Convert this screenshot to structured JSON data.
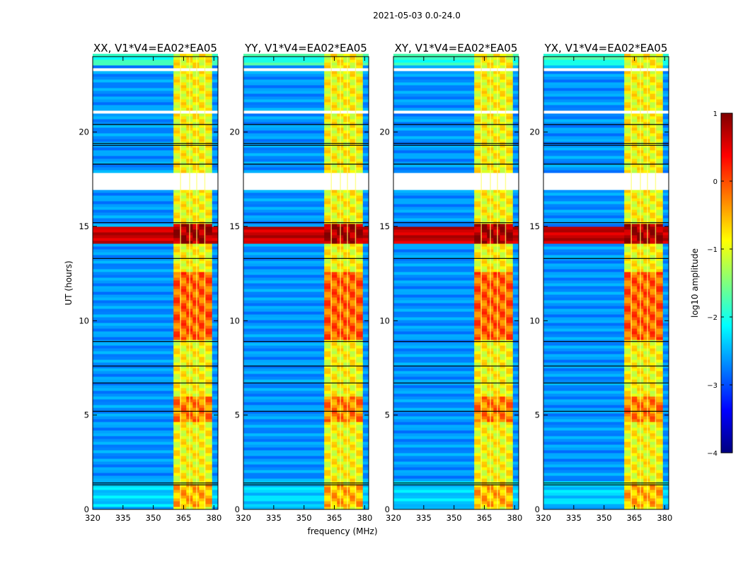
{
  "figure": {
    "suptitle": "2021-05-03 0.0-24.0",
    "xlabel": "frequency (MHz)",
    "ylabel": "UT (hours)"
  },
  "chart_data": {
    "type": "heatmap",
    "title": "2021-05-03 0.0-24.0",
    "xlabel": "frequency (MHz)",
    "ylabel": "UT (hours)",
    "xlim": [
      320,
      382
    ],
    "ylim": [
      0,
      24
    ],
    "x_ticks": [
      320,
      335,
      350,
      365,
      380
    ],
    "y_ticks": [
      0,
      5,
      10,
      15,
      20
    ],
    "panels": [
      {
        "title": "XX, V1*V4=EA02*EA05",
        "pol": "XX"
      },
      {
        "title": "YY, V1*V4=EA02*EA05",
        "pol": "YY"
      },
      {
        "title": "XY, V1*V4=EA02*EA05",
        "pol": "XY"
      },
      {
        "title": "YX, V1*V4=EA02*EA05",
        "pol": "YX"
      }
    ],
    "band_mhz": [
      360,
      379
    ],
    "colorbar": {
      "label": "log10 amplitude",
      "range": [
        -4,
        1
      ],
      "ticks": [
        1,
        0,
        -1,
        -2,
        -3,
        -4
      ],
      "tick_labels": [
        "1",
        "0",
        "−1",
        "−2",
        "−3",
        "−4"
      ],
      "colormap": "jet",
      "colors": [
        "#00007f",
        "#0000ff",
        "#007fff",
        "#00ffff",
        "#7fff7f",
        "#ffff00",
        "#ff7f00",
        "#ff0000",
        "#7f0000"
      ]
    },
    "data_gaps_ut": [
      [
        16.95,
        17.75
      ],
      [
        23.2,
        23.35
      ],
      [
        20.95,
        21.05
      ],
      [
        13.7,
        13.75
      ]
    ],
    "flagged_lines_ut": [
      1.3,
      1.4,
      5.2,
      6.7,
      7.6,
      8.9,
      13.3,
      15.2,
      18.3,
      19.3,
      19.4,
      20.4
    ]
  }
}
